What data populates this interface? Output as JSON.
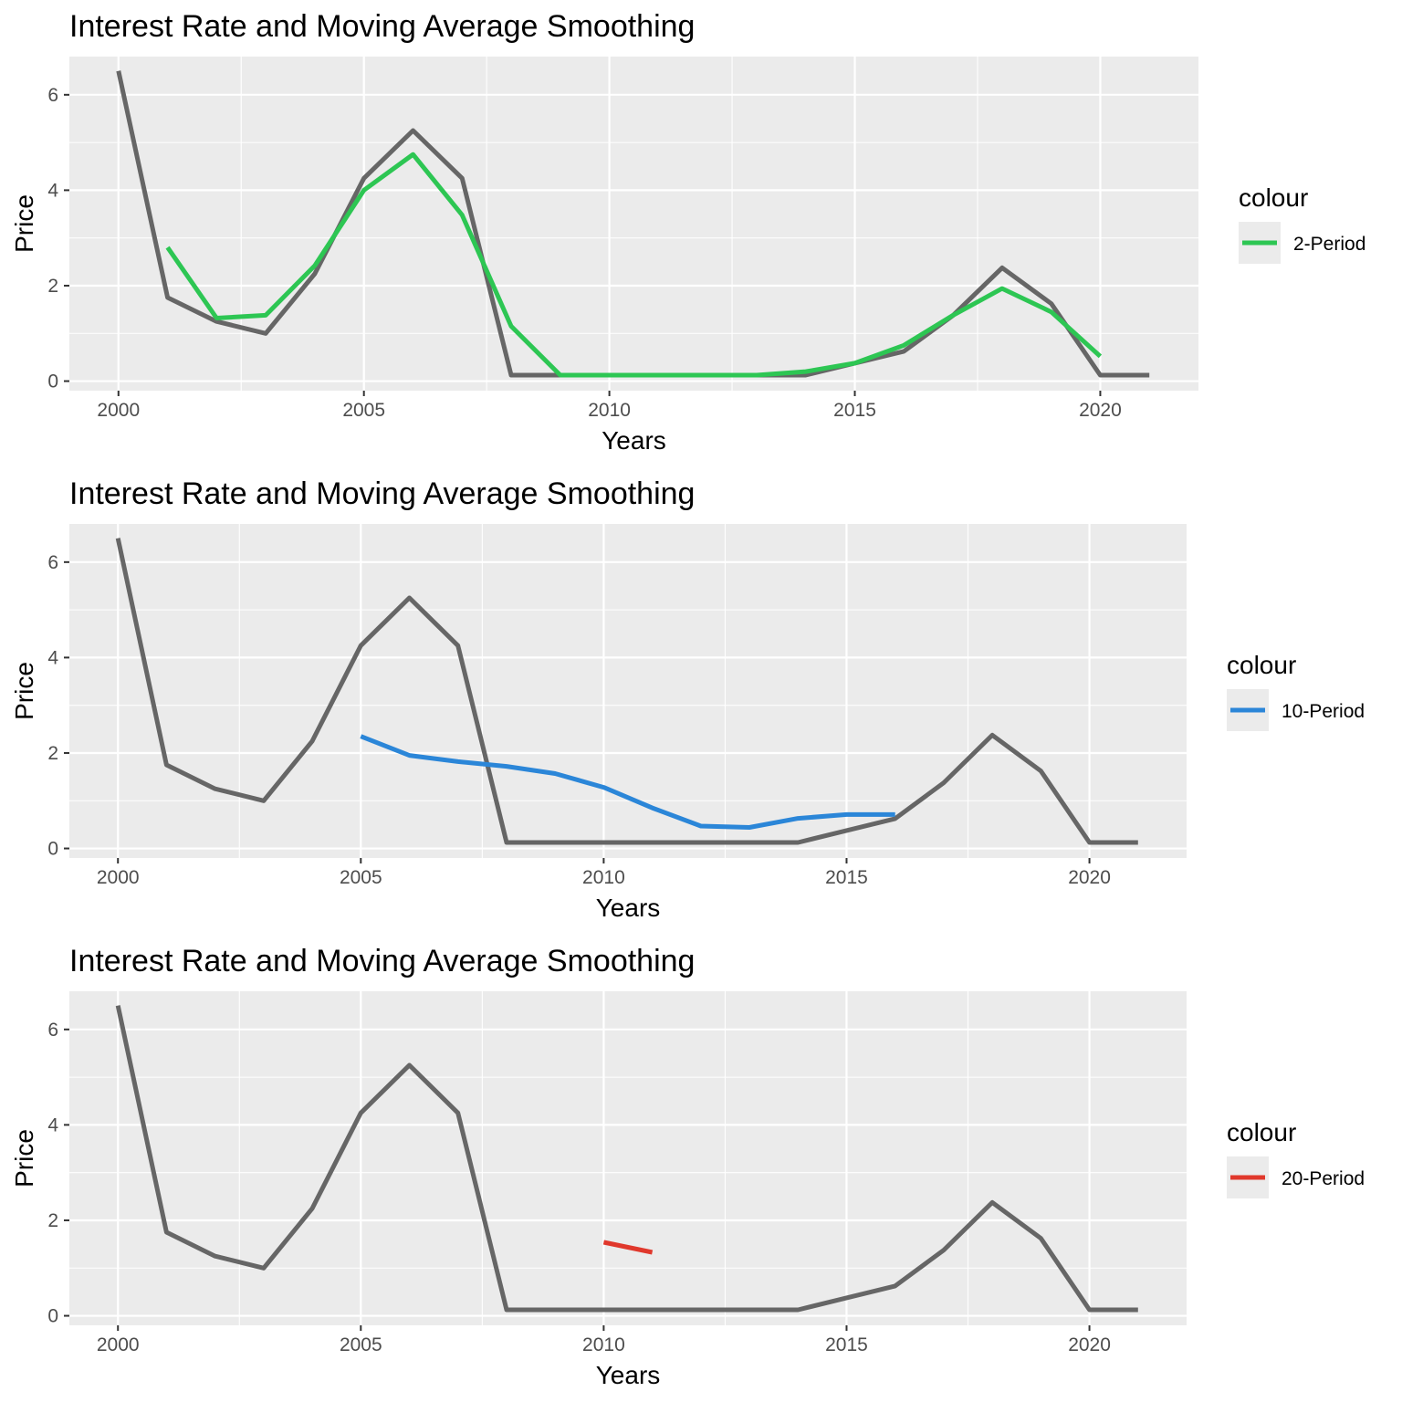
{
  "chart_data": [
    {
      "type": "line",
      "title": "Interest Rate and Moving Average Smoothing",
      "xlabel": "Years",
      "ylabel": "Price",
      "xlim": [
        1999,
        2022
      ],
      "ylim": [
        -0.2,
        6.8
      ],
      "x_ticks": [
        2000,
        2005,
        2010,
        2015,
        2020
      ],
      "y_ticks": [
        0,
        2,
        4,
        6
      ],
      "grid": true,
      "legend": {
        "title": "colour",
        "position": "right",
        "entries": [
          "2-Period"
        ]
      },
      "series": [
        {
          "color": "#666666",
          "x": [
            2000,
            2001,
            2002,
            2003,
            2004,
            2005,
            2006,
            2007,
            2008,
            2009,
            2010,
            2011,
            2012,
            2013,
            2014,
            2015,
            2016,
            2017,
            2018,
            2019,
            2020,
            2021
          ],
          "values": [
            6.5,
            1.75,
            1.25,
            1.0,
            2.25,
            4.25,
            5.25,
            4.25,
            0.125,
            0.125,
            0.125,
            0.125,
            0.125,
            0.125,
            0.125,
            0.375,
            0.625,
            1.375,
            2.375,
            1.625,
            0.125,
            0.125
          ]
        },
        {
          "name": "2-Period",
          "color": "#2DC653",
          "x": [
            2001,
            2002,
            2003,
            2004,
            2005,
            2006,
            2007,
            2008,
            2009,
            2010,
            2011,
            2012,
            2013,
            2014,
            2015,
            2016,
            2017,
            2018,
            2019,
            2020
          ],
          "values": [
            2.8,
            1.32,
            1.38,
            2.42,
            4.0,
            4.75,
            3.48,
            1.15,
            0.125,
            0.125,
            0.125,
            0.125,
            0.125,
            0.2,
            0.375,
            0.75,
            1.38,
            1.94,
            1.45,
            0.52
          ]
        }
      ]
    },
    {
      "type": "line",
      "title": "Interest Rate and Moving Average Smoothing",
      "xlabel": "Years",
      "ylabel": "Price",
      "xlim": [
        1999,
        2022
      ],
      "ylim": [
        -0.2,
        6.8
      ],
      "x_ticks": [
        2000,
        2005,
        2010,
        2015,
        2020
      ],
      "y_ticks": [
        0,
        2,
        4,
        6
      ],
      "grid": true,
      "legend": {
        "title": "colour",
        "position": "right",
        "entries": [
          "10-Period"
        ]
      },
      "series": [
        {
          "color": "#666666",
          "x": [
            2000,
            2001,
            2002,
            2003,
            2004,
            2005,
            2006,
            2007,
            2008,
            2009,
            2010,
            2011,
            2012,
            2013,
            2014,
            2015,
            2016,
            2017,
            2018,
            2019,
            2020,
            2021
          ],
          "values": [
            6.5,
            1.75,
            1.25,
            1.0,
            2.25,
            4.25,
            5.25,
            4.25,
            0.125,
            0.125,
            0.125,
            0.125,
            0.125,
            0.125,
            0.125,
            0.375,
            0.625,
            1.375,
            2.375,
            1.625,
            0.125,
            0.125
          ]
        },
        {
          "name": "10-Period",
          "color": "#2B86D8",
          "x": [
            2005,
            2006,
            2007,
            2008,
            2009,
            2010,
            2011,
            2012,
            2013,
            2014,
            2015,
            2016
          ],
          "values": [
            2.35,
            1.95,
            1.82,
            1.72,
            1.57,
            1.28,
            0.85,
            0.47,
            0.44,
            0.63,
            0.71,
            0.71
          ]
        }
      ]
    },
    {
      "type": "line",
      "title": "Interest Rate and Moving Average Smoothing",
      "xlabel": "Years",
      "ylabel": "Price",
      "xlim": [
        1999,
        2022
      ],
      "ylim": [
        -0.2,
        6.8
      ],
      "x_ticks": [
        2000,
        2005,
        2010,
        2015,
        2020
      ],
      "y_ticks": [
        0,
        2,
        4,
        6
      ],
      "grid": true,
      "legend": {
        "title": "colour",
        "position": "right",
        "entries": [
          "20-Period"
        ]
      },
      "series": [
        {
          "color": "#666666",
          "x": [
            2000,
            2001,
            2002,
            2003,
            2004,
            2005,
            2006,
            2007,
            2008,
            2009,
            2010,
            2011,
            2012,
            2013,
            2014,
            2015,
            2016,
            2017,
            2018,
            2019,
            2020,
            2021
          ],
          "values": [
            6.5,
            1.75,
            1.25,
            1.0,
            2.25,
            4.25,
            5.25,
            4.25,
            0.125,
            0.125,
            0.125,
            0.125,
            0.125,
            0.125,
            0.125,
            0.375,
            0.625,
            1.375,
            2.375,
            1.625,
            0.125,
            0.125
          ]
        },
        {
          "name": "20-Period",
          "color": "#E0382C",
          "x": [
            2010,
            2011
          ],
          "values": [
            1.54,
            1.33
          ]
        }
      ]
    }
  ]
}
